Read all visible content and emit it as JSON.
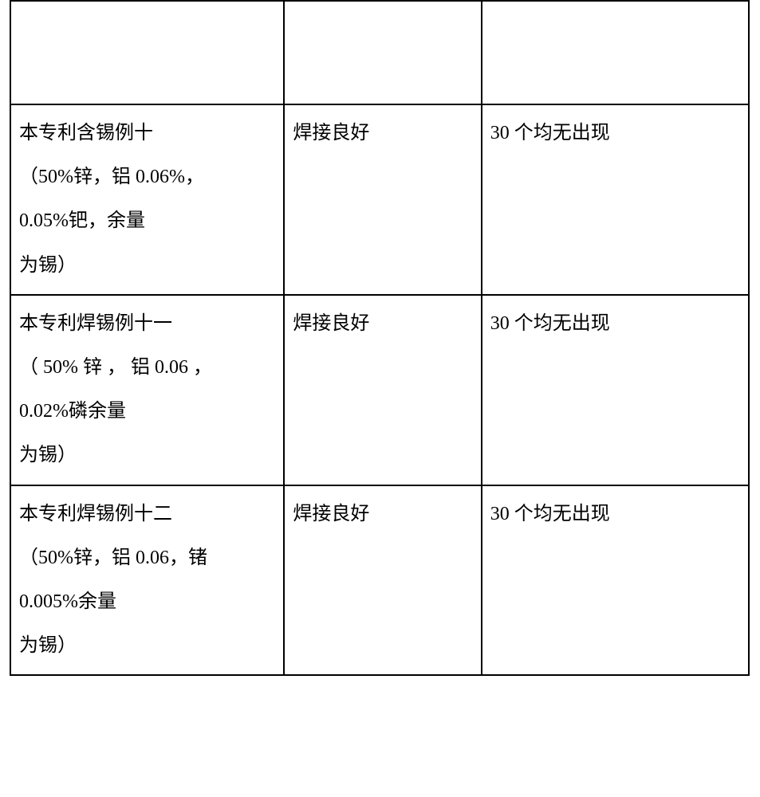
{
  "table": {
    "columns_width": [
      344,
      248,
      336
    ],
    "border_color": "#000000",
    "border_width": 2,
    "background_color": "#ffffff",
    "font_family": "SimSun",
    "font_size": 24,
    "line_height": 2.3,
    "text_color": "#000000",
    "rows": [
      {
        "type": "empty",
        "cells": [
          "",
          "",
          ""
        ]
      },
      {
        "type": "data",
        "cells": [
          {
            "lines": [
              "本专利含锡例十",
              "（50%锌，铝 0.06%，",
              "0.05%钯，余量",
              "为锡）"
            ]
          },
          {
            "lines": [
              "焊接良好"
            ]
          },
          {
            "lines": [
              "30 个均无出现"
            ]
          }
        ]
      },
      {
        "type": "data",
        "cells": [
          {
            "lines": [
              "本专利焊锡例十一",
              "（ 50% 锌 ， 铝 0.06 ，",
              "0.02%磷余量",
              "为锡）"
            ]
          },
          {
            "lines": [
              "焊接良好"
            ]
          },
          {
            "lines": [
              "30 个均无出现"
            ]
          }
        ]
      },
      {
        "type": "data",
        "cells": [
          {
            "lines": [
              "本专利焊锡例十二",
              "（50%锌，铝 0.06，锗",
              "0.005%余量",
              "为锡）"
            ]
          },
          {
            "lines": [
              "焊接良好"
            ]
          },
          {
            "lines": [
              "30 个均无出现"
            ]
          }
        ]
      }
    ]
  }
}
